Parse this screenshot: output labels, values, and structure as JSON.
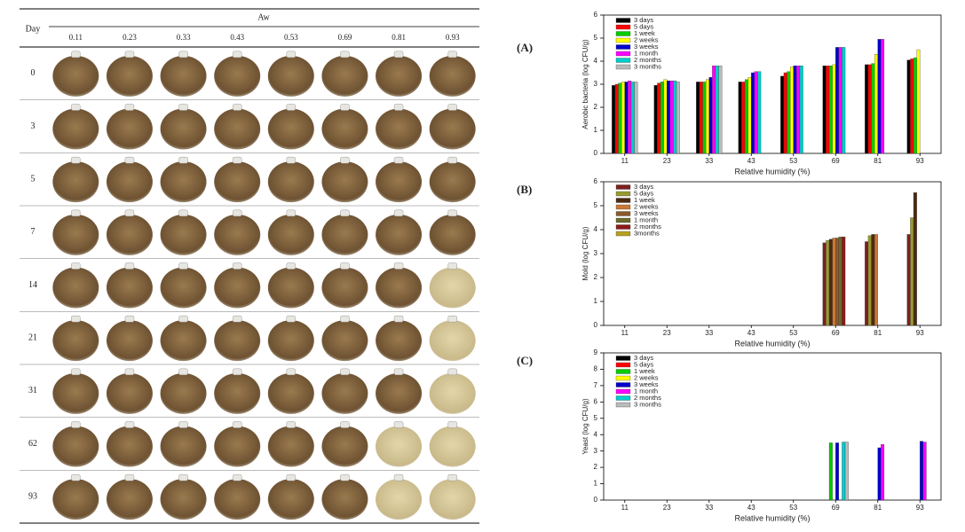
{
  "table": {
    "day_header": "Day",
    "aw_header": "Aw",
    "aw_values": [
      "0.11",
      "0.23",
      "0.33",
      "0.43",
      "0.53",
      "0.69",
      "0.81",
      "0.93"
    ],
    "days": [
      "0",
      "3",
      "5",
      "7",
      "14",
      "21",
      "31",
      "62",
      "93"
    ]
  },
  "chart_data": [
    {
      "type": "bar",
      "panel_label": "(A)",
      "xlabel": "Relative humidity (%)",
      "ylabel": "Aerobic bacteria (log CFU/g)",
      "categories": [
        "11",
        "23",
        "33",
        "43",
        "53",
        "69",
        "81",
        "93"
      ],
      "ylim": [
        0,
        6
      ],
      "yticks": [
        0,
        1,
        2,
        3,
        4,
        5,
        6
      ],
      "series": [
        {
          "name": "3 days",
          "color": "#000000",
          "values": [
            2.95,
            2.95,
            3.1,
            3.1,
            3.35,
            3.8,
            3.85,
            4.05
          ]
        },
        {
          "name": "5 days",
          "color": "#ff0000",
          "values": [
            3.0,
            3.05,
            3.1,
            3.1,
            3.5,
            3.8,
            3.85,
            4.1
          ]
        },
        {
          "name": "1 week",
          "color": "#00cc00",
          "values": [
            3.05,
            3.1,
            3.1,
            3.2,
            3.55,
            3.8,
            3.9,
            4.15
          ]
        },
        {
          "name": "2 weeks",
          "color": "#ffff00",
          "values": [
            3.1,
            3.2,
            3.2,
            3.3,
            3.75,
            3.85,
            4.3,
            4.5
          ]
        },
        {
          "name": "3 weeks",
          "color": "#0000cc",
          "values": [
            3.1,
            3.15,
            3.3,
            3.5,
            3.8,
            4.6,
            4.95,
            null
          ]
        },
        {
          "name": "1 month",
          "color": "#ff00ff",
          "values": [
            3.15,
            3.15,
            3.8,
            3.55,
            3.8,
            4.6,
            4.95,
            null
          ]
        },
        {
          "name": "2 months",
          "color": "#00cccc",
          "values": [
            3.1,
            3.15,
            3.8,
            3.55,
            3.8,
            4.6,
            null,
            null
          ]
        },
        {
          "name": "3 months",
          "color": "#bbbbbb",
          "values": [
            3.1,
            3.1,
            3.8,
            null,
            null,
            null,
            null,
            null
          ]
        }
      ]
    },
    {
      "type": "bar",
      "panel_label": "(B)",
      "xlabel": "Relative humidity (%)",
      "ylabel": "Mold (log CFU/g)",
      "categories": [
        "11",
        "23",
        "33",
        "43",
        "53",
        "69",
        "81",
        "93"
      ],
      "ylim": [
        0,
        6
      ],
      "yticks": [
        0,
        1,
        2,
        3,
        4,
        5,
        6
      ],
      "series": [
        {
          "name": "3 days",
          "color": "#7a1f1f",
          "values": [
            null,
            null,
            null,
            null,
            null,
            3.45,
            3.5,
            3.8
          ]
        },
        {
          "name": "5 days",
          "color": "#999933",
          "values": [
            null,
            null,
            null,
            null,
            null,
            3.55,
            3.75,
            4.5
          ]
        },
        {
          "name": "1 week",
          "color": "#4a2a10",
          "values": [
            null,
            null,
            null,
            null,
            null,
            3.6,
            3.8,
            5.55
          ]
        },
        {
          "name": "2 weeks",
          "color": "#cc7733",
          "values": [
            null,
            null,
            null,
            null,
            null,
            3.65,
            3.8,
            null
          ]
        },
        {
          "name": "3 weeks",
          "color": "#8b5a2b",
          "values": [
            null,
            null,
            null,
            null,
            null,
            3.65,
            null,
            null
          ]
        },
        {
          "name": "1 month",
          "color": "#6b6b2b",
          "values": [
            null,
            null,
            null,
            null,
            null,
            3.7,
            null,
            null
          ]
        },
        {
          "name": "2 months",
          "color": "#8b1a1a",
          "values": [
            null,
            null,
            null,
            null,
            null,
            3.7,
            null,
            null
          ]
        },
        {
          "name": "3months",
          "color": "#b5a020",
          "values": [
            null,
            null,
            null,
            null,
            null,
            null,
            null,
            null
          ]
        }
      ]
    },
    {
      "type": "bar",
      "panel_label": "(C)",
      "xlabel": "Relative humidity (%)",
      "ylabel": "Yeast (log CFU/g)",
      "categories": [
        "11",
        "23",
        "33",
        "43",
        "53",
        "69",
        "81",
        "93"
      ],
      "ylim": [
        0,
        9
      ],
      "yticks": [
        0,
        1,
        2,
        3,
        4,
        5,
        6,
        7,
        8,
        9
      ],
      "series": [
        {
          "name": "3 days",
          "color": "#000000",
          "values": [
            null,
            null,
            null,
            null,
            null,
            null,
            null,
            null
          ]
        },
        {
          "name": "5 days",
          "color": "#ff0000",
          "values": [
            null,
            null,
            null,
            null,
            null,
            null,
            null,
            null
          ]
        },
        {
          "name": "1 week",
          "color": "#00cc00",
          "values": [
            null,
            null,
            null,
            null,
            null,
            3.5,
            null,
            null
          ]
        },
        {
          "name": "2 weeks",
          "color": "#ffff00",
          "values": [
            null,
            null,
            null,
            null,
            null,
            null,
            null,
            null
          ]
        },
        {
          "name": "3 weeks",
          "color": "#0000cc",
          "values": [
            null,
            null,
            null,
            null,
            null,
            3.5,
            3.2,
            3.6
          ]
        },
        {
          "name": "1 month",
          "color": "#ff00ff",
          "values": [
            null,
            null,
            null,
            null,
            null,
            null,
            3.4,
            3.55
          ]
        },
        {
          "name": "2 months",
          "color": "#00cccc",
          "values": [
            null,
            null,
            null,
            null,
            null,
            3.55,
            null,
            null
          ]
        },
        {
          "name": "3 months",
          "color": "#bbbbbb",
          "values": [
            null,
            null,
            null,
            null,
            null,
            3.55,
            null,
            null
          ]
        }
      ]
    }
  ]
}
